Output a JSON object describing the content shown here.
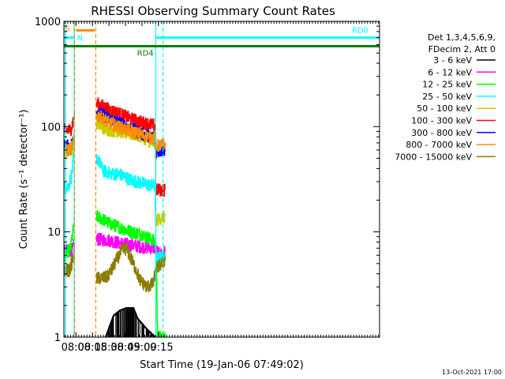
{
  "chart_data": {
    "type": "line",
    "title": "RHESSI Observing Summary Count Rates",
    "xlabel": "Start Time (19-Jan-06 07:49:02)",
    "ylabel": "Count Rate (s⁻¹ detector⁻¹)",
    "yscale": "log",
    "ylim": [
      1,
      1000
    ],
    "xlim_minutes": [
      469.0,
      756.0
    ],
    "x_ticks": [
      {
        "label": "08:00",
        "minutes": 480
      },
      {
        "label": "08:15",
        "minutes": 495
      },
      {
        "label": "08:30",
        "minutes": 510
      },
      {
        "label": "08:45",
        "minutes": 525
      },
      {
        "label": "09:00",
        "minutes": 540
      },
      {
        "label": "09:15",
        "minutes": 555
      }
    ],
    "y_ticks": [
      {
        "label": "1",
        "value": 1
      },
      {
        "label": "10",
        "value": 10
      },
      {
        "label": "100",
        "value": 100
      },
      {
        "label": "1000",
        "value": 1000
      }
    ],
    "legend": {
      "position": "right",
      "header_line1": "Det 1,3,4,5,6,9,",
      "header_line2": "FDecim 2, Att 0",
      "items": [
        {
          "label": "3 - 6 keV",
          "color": "#000000"
        },
        {
          "label": "6 - 12 keV",
          "color": "#ff00ff"
        },
        {
          "label": "12 - 25 keV",
          "color": "#00ff00"
        },
        {
          "label": "25 - 50 keV",
          "color": "#00ffff"
        },
        {
          "label": "50 - 100 keV",
          "color": "#cccc00"
        },
        {
          "label": "100 - 300 keV",
          "color": "#ff0000"
        },
        {
          "label": "300 - 800 keV",
          "color": "#0000ff"
        },
        {
          "label": "800 - 7000 keV",
          "color": "#ff8c00"
        },
        {
          "label": "7000 - 15000 keV",
          "color": "#8b7d00"
        }
      ]
    },
    "flags": [
      {
        "label": "S",
        "color": "#ff8c00",
        "x_start": 480,
        "x_end": 497,
        "level": 820
      },
      {
        "label": "N",
        "color": "#00ffff",
        "x_start": 469,
        "x_end": 478,
        "level": 700
      },
      {
        "label": "RD4",
        "color": "#008000",
        "x_start": 469,
        "x_end": 756,
        "level": 580
      },
      {
        "label": "RD0",
        "color": "#00ffff",
        "x_start": 553,
        "x_end": 756,
        "level": 700
      }
    ],
    "vertical_markers": [
      {
        "minutes": 470.5,
        "color": "#00ffff",
        "style": "solid"
      },
      {
        "minutes": 478.3,
        "color": "#00ffff",
        "style": "solid"
      },
      {
        "minutes": 478.7,
        "color": "#ff8c00",
        "style": "dashed"
      },
      {
        "minutes": 498.0,
        "color": "#ff8c00",
        "style": "dashed"
      },
      {
        "minutes": 552.5,
        "color": "#00ffff",
        "style": "solid"
      },
      {
        "minutes": 559.2,
        "color": "#00ffff",
        "style": "dashed"
      }
    ],
    "segments": [
      {
        "x_start": 469,
        "x_end": 478.5
      },
      {
        "x_start": 498.5,
        "x_end": 552.5
      },
      {
        "x_start": 553.0,
        "x_end": 561
      }
    ],
    "series": [
      {
        "name": "3 - 6 keV",
        "color": "#000000",
        "points": [
          [
            469,
            0.9
          ],
          [
            478,
            0.9
          ],
          [
            506,
            0.95
          ],
          [
            514,
            1.6
          ],
          [
            520,
            1.8
          ],
          [
            526,
            1.9
          ],
          [
            532,
            1.9
          ],
          [
            536,
            1.5
          ],
          [
            544,
            1.2
          ],
          [
            552,
            1.0
          ],
          [
            561,
            0.9
          ]
        ]
      },
      {
        "name": "6 - 12 keV",
        "color": "#ff00ff",
        "points": [
          [
            469,
            6.5
          ],
          [
            477,
            6.8
          ],
          [
            478,
            7.5
          ],
          [
            499,
            8.5
          ],
          [
            510,
            8.3
          ],
          [
            520,
            7.8
          ],
          [
            530,
            7.5
          ],
          [
            540,
            7.2
          ],
          [
            552,
            7.0
          ],
          [
            556,
            6.0
          ],
          [
            561,
            6.5
          ]
        ]
      },
      {
        "name": "12 - 25 keV",
        "color": "#00ff00",
        "points": [
          [
            469,
            5.8
          ],
          [
            475,
            7.0
          ],
          [
            477,
            10.0
          ],
          [
            478,
            11.0
          ],
          [
            499,
            14.0
          ],
          [
            505,
            13.0
          ],
          [
            510,
            12.0
          ],
          [
            520,
            11.0
          ],
          [
            530,
            10.0
          ],
          [
            540,
            9.5
          ],
          [
            552,
            8.0
          ],
          [
            553,
            6.0
          ],
          [
            554,
            1.0
          ],
          [
            561,
            1.0
          ]
        ]
      },
      {
        "name": "25 - 50 keV",
        "color": "#00ffff",
        "points": [
          [
            469,
            26
          ],
          [
            473,
            27
          ],
          [
            476,
            35
          ],
          [
            478,
            55
          ],
          [
            499,
            50
          ],
          [
            505,
            38
          ],
          [
            510,
            36
          ],
          [
            520,
            35
          ],
          [
            530,
            31
          ],
          [
            540,
            29
          ],
          [
            552,
            27
          ],
          [
            553,
            5.5
          ],
          [
            561,
            6.0
          ]
        ]
      },
      {
        "name": "50 - 100 keV",
        "color": "#cccc00",
        "points": [
          [
            469,
            58
          ],
          [
            475,
            59
          ],
          [
            477,
            62
          ],
          [
            478,
            70
          ],
          [
            499,
            110
          ],
          [
            505,
            95
          ],
          [
            510,
            93
          ],
          [
            520,
            90
          ],
          [
            530,
            85
          ],
          [
            540,
            80
          ],
          [
            552,
            67
          ],
          [
            553,
            13.0
          ],
          [
            561,
            14.0
          ]
        ]
      },
      {
        "name": "100 - 300 keV",
        "color": "#ff0000",
        "points": [
          [
            469,
            92
          ],
          [
            475,
            93
          ],
          [
            477,
            110
          ],
          [
            478,
            125
          ],
          [
            499,
            165
          ],
          [
            505,
            155
          ],
          [
            510,
            145
          ],
          [
            520,
            132
          ],
          [
            530,
            118
          ],
          [
            540,
            110
          ],
          [
            550,
            103
          ],
          [
            552,
            104
          ],
          [
            553,
            25
          ],
          [
            561,
            25
          ]
        ]
      },
      {
        "name": "300 - 800 keV",
        "color": "#0000ff",
        "points": [
          [
            469,
            65
          ],
          [
            475,
            65
          ],
          [
            477,
            72
          ],
          [
            478,
            80
          ],
          [
            499,
            140
          ],
          [
            505,
            128
          ],
          [
            510,
            118
          ],
          [
            520,
            108
          ],
          [
            530,
            95
          ],
          [
            540,
            85
          ],
          [
            550,
            80
          ],
          [
            552,
            84
          ],
          [
            553,
            58
          ],
          [
            561,
            60
          ]
        ]
      },
      {
        "name": "800 - 7000 keV",
        "color": "#ff8c00",
        "points": [
          [
            469,
            60
          ],
          [
            475,
            61
          ],
          [
            477,
            68
          ],
          [
            478,
            75
          ],
          [
            499,
            128
          ],
          [
            505,
            118
          ],
          [
            510,
            108
          ],
          [
            520,
            98
          ],
          [
            530,
            90
          ],
          [
            540,
            83
          ],
          [
            550,
            78
          ],
          [
            552,
            80
          ],
          [
            553,
            65
          ],
          [
            561,
            68
          ]
        ]
      },
      {
        "name": "7000 - 15000 keV",
        "color": "#8b7d00",
        "points": [
          [
            469,
            4.3
          ],
          [
            474,
            4.3
          ],
          [
            477,
            5.5
          ],
          [
            478,
            6.0
          ],
          [
            499,
            3.6
          ],
          [
            508,
            3.7
          ],
          [
            512,
            4.3
          ],
          [
            516,
            5.2
          ],
          [
            521,
            6.5
          ],
          [
            526,
            7.0
          ],
          [
            530,
            5.5
          ],
          [
            534,
            4.5
          ],
          [
            538,
            3.5
          ],
          [
            544,
            3.0
          ],
          [
            550,
            3.2
          ],
          [
            553,
            4.5
          ],
          [
            558,
            5.0
          ],
          [
            561,
            5.5
          ]
        ]
      }
    ],
    "grid": false,
    "footer_date": "13-Oct-2021 17:00"
  }
}
